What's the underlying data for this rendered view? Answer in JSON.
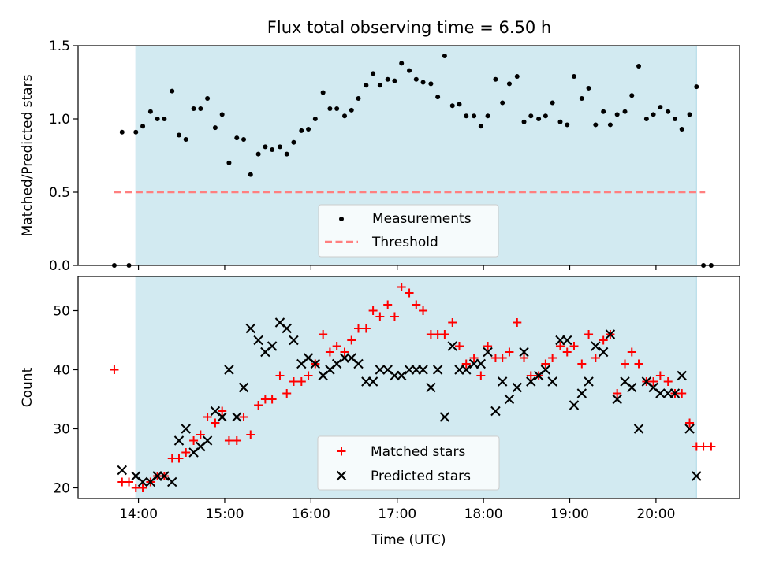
{
  "title": "Flux total observing time = 6.50 h",
  "colors": {
    "observing_span": "#add8e6",
    "measurement": "#000000",
    "threshold": "#ff7f7f",
    "matched": "#ff0000",
    "predicted": "#000000"
  },
  "chart_data": [
    {
      "type": "scatter",
      "panel": "top",
      "title": "Flux total observing time = 6.50 h",
      "ylabel": "Matched/Predicted stars",
      "xlabel": "",
      "xlim": [
        13.3,
        20.97
      ],
      "ylim": [
        0,
        1.5
      ],
      "yticks": [
        0.0,
        0.5,
        1.0,
        1.5
      ],
      "ytick_labels": [
        "0.0",
        "0.5",
        "1.0",
        "1.5"
      ],
      "xticks": [
        14,
        15,
        16,
        17,
        18,
        19,
        20
      ],
      "show_xtick_labels": false,
      "observing_span": [
        13.97,
        20.47
      ],
      "threshold": {
        "y": 0.5,
        "x": [
          13.72,
          20.57
        ]
      },
      "legend": {
        "position": "lower-center",
        "entries": [
          "Measurements",
          "Threshold"
        ]
      },
      "measurements": {
        "x": [
          13.72,
          13.81,
          13.89,
          13.97,
          14.05,
          14.14,
          14.22,
          14.3,
          14.39,
          14.47,
          14.55,
          14.64,
          14.72,
          14.8,
          14.89,
          14.97,
          15.05,
          15.14,
          15.22,
          15.3,
          15.39,
          15.47,
          15.55,
          15.64,
          15.72,
          15.8,
          15.89,
          15.97,
          16.05,
          16.14,
          16.22,
          16.3,
          16.39,
          16.47,
          16.55,
          16.64,
          16.72,
          16.8,
          16.89,
          16.97,
          17.05,
          17.14,
          17.22,
          17.3,
          17.39,
          17.47,
          17.55,
          17.64,
          17.72,
          17.8,
          17.89,
          17.97,
          18.05,
          18.14,
          18.22,
          18.3,
          18.39,
          18.47,
          18.55,
          18.64,
          18.72,
          18.8,
          18.89,
          18.97,
          19.05,
          19.14,
          19.22,
          19.3,
          19.39,
          19.47,
          19.55,
          19.64,
          19.72,
          19.8,
          19.89,
          19.97,
          20.05,
          20.14,
          20.22,
          20.3,
          20.39,
          20.47,
          20.55,
          20.64
        ],
        "y": [
          0.0,
          0.91,
          0.0,
          0.91,
          0.95,
          1.05,
          1.0,
          1.0,
          1.19,
          0.89,
          0.86,
          1.07,
          1.07,
          1.14,
          0.94,
          1.03,
          0.7,
          0.87,
          0.86,
          0.62,
          0.76,
          0.81,
          0.79,
          0.81,
          0.76,
          0.84,
          0.92,
          0.93,
          1.0,
          1.18,
          1.07,
          1.07,
          1.02,
          1.06,
          1.14,
          1.23,
          1.31,
          1.23,
          1.27,
          1.26,
          1.38,
          1.33,
          1.27,
          1.25,
          1.24,
          1.15,
          1.43,
          1.09,
          1.1,
          1.02,
          1.02,
          0.95,
          1.02,
          1.27,
          1.11,
          1.24,
          1.29,
          0.98,
          1.02,
          1.0,
          1.02,
          1.11,
          0.98,
          0.96,
          1.29,
          1.14,
          1.21,
          0.96,
          1.05,
          0.96,
          1.03,
          1.05,
          1.16,
          1.36,
          1.0,
          1.03,
          1.08,
          1.05,
          1.0,
          0.93,
          1.03,
          1.22,
          0.0,
          0.0
        ]
      }
    },
    {
      "type": "scatter",
      "panel": "bottom",
      "xlabel": "Time (UTC)",
      "ylabel": "Count",
      "xlim": [
        13.3,
        20.97
      ],
      "ylim": [
        18.2,
        55.8
      ],
      "yticks": [
        20,
        30,
        40,
        50
      ],
      "ytick_labels": [
        "20",
        "30",
        "40",
        "50"
      ],
      "xticks": [
        14,
        15,
        16,
        17,
        18,
        19,
        20
      ],
      "xtick_labels": [
        "14:00",
        "15:00",
        "16:00",
        "17:00",
        "18:00",
        "19:00",
        "20:00"
      ],
      "observing_span": [
        13.97,
        20.47
      ],
      "legend": {
        "position": "lower-center",
        "entries": [
          "Matched stars",
          "Predicted stars"
        ]
      },
      "series": [
        {
          "name": "Matched stars",
          "marker": "plus",
          "x": [
            13.72,
            13.81,
            13.89,
            13.97,
            14.05,
            14.14,
            14.22,
            14.3,
            14.39,
            14.47,
            14.55,
            14.64,
            14.72,
            14.8,
            14.89,
            14.97,
            15.05,
            15.14,
            15.22,
            15.3,
            15.39,
            15.47,
            15.55,
            15.64,
            15.72,
            15.8,
            15.89,
            15.97,
            16.05,
            16.14,
            16.22,
            16.3,
            16.39,
            16.47,
            16.55,
            16.64,
            16.72,
            16.8,
            16.89,
            16.97,
            17.05,
            17.14,
            17.22,
            17.3,
            17.39,
            17.47,
            17.55,
            17.64,
            17.72,
            17.8,
            17.89,
            17.97,
            18.05,
            18.14,
            18.22,
            18.3,
            18.39,
            18.47,
            18.55,
            18.64,
            18.72,
            18.8,
            18.89,
            18.97,
            19.05,
            19.14,
            19.22,
            19.3,
            19.39,
            19.47,
            19.55,
            19.64,
            19.72,
            19.8,
            19.89,
            19.97,
            20.05,
            20.14,
            20.22,
            20.3,
            20.39,
            20.47,
            20.55,
            20.64
          ],
          "values": [
            40,
            21,
            21,
            20,
            20,
            21,
            22,
            22,
            25,
            25,
            26,
            28,
            29,
            32,
            31,
            33,
            28,
            28,
            32,
            29,
            34,
            35,
            35,
            39,
            36,
            38,
            38,
            39,
            41,
            46,
            43,
            44,
            43,
            45,
            47,
            47,
            50,
            49,
            51,
            49,
            54,
            53,
            51,
            50,
            46,
            46,
            46,
            48,
            44,
            41,
            42,
            39,
            44,
            42,
            42,
            43,
            48,
            42,
            39,
            39,
            41,
            42,
            44,
            43,
            44,
            41,
            46,
            42,
            45,
            46,
            36,
            41,
            43,
            41,
            38,
            38,
            39,
            38,
            36,
            36,
            31,
            27,
            27,
            27
          ]
        },
        {
          "name": "Predicted stars",
          "marker": "x",
          "x": [
            13.81,
            13.97,
            14.05,
            14.14,
            14.22,
            14.3,
            14.39,
            14.47,
            14.55,
            14.64,
            14.72,
            14.8,
            14.89,
            14.97,
            15.05,
            15.14,
            15.22,
            15.3,
            15.39,
            15.47,
            15.55,
            15.64,
            15.72,
            15.8,
            15.89,
            15.97,
            16.05,
            16.14,
            16.22,
            16.3,
            16.39,
            16.47,
            16.55,
            16.64,
            16.72,
            16.8,
            16.89,
            16.97,
            17.05,
            17.14,
            17.22,
            17.3,
            17.39,
            17.47,
            17.55,
            17.64,
            17.72,
            17.8,
            17.89,
            17.97,
            18.05,
            18.14,
            18.22,
            18.3,
            18.39,
            18.47,
            18.55,
            18.64,
            18.72,
            18.8,
            18.89,
            18.97,
            19.05,
            19.14,
            19.22,
            19.3,
            19.39,
            19.47,
            19.55,
            19.64,
            19.72,
            19.8,
            19.89,
            19.97,
            20.05,
            20.14,
            20.22,
            20.3,
            20.39,
            20.47
          ],
          "values": [
            23,
            22,
            21,
            21,
            22,
            22,
            21,
            28,
            30,
            26,
            27,
            28,
            33,
            32,
            40,
            32,
            37,
            47,
            45,
            43,
            44,
            48,
            47,
            45,
            41,
            42,
            41,
            39,
            40,
            41,
            42,
            42,
            41,
            38,
            38,
            40,
            40,
            39,
            39,
            40,
            40,
            40,
            37,
            40,
            32,
            44,
            40,
            40,
            41,
            41,
            43,
            33,
            38,
            35,
            37,
            43,
            38,
            39,
            40,
            38,
            45,
            45,
            34,
            36,
            38,
            44,
            43,
            46,
            35,
            38,
            37,
            30,
            38,
            37,
            36,
            36,
            36,
            39,
            30,
            22
          ]
        }
      ]
    }
  ]
}
